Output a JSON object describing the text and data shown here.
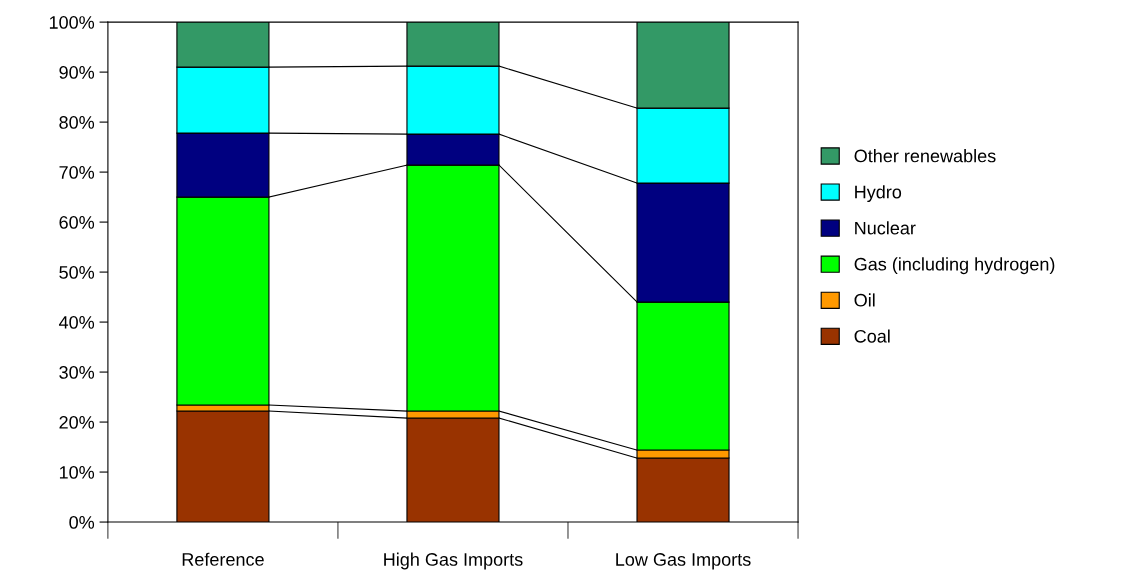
{
  "chart_data": {
    "type": "bar",
    "stacked": true,
    "categories": [
      "Reference",
      "High Gas Imports",
      "Low Gas Imports"
    ],
    "series": [
      {
        "name": "Coal",
        "color": "#993300",
        "values": [
          22.2,
          20.8,
          12.8
        ]
      },
      {
        "name": "Oil",
        "color": "#ff9900",
        "values": [
          1.2,
          1.4,
          1.6
        ]
      },
      {
        "name": "Gas (including hydrogen)",
        "color": "#00ff00",
        "values": [
          41.6,
          49.2,
          29.6
        ]
      },
      {
        "name": "Nuclear",
        "color": "#000080",
        "values": [
          12.8,
          6.2,
          23.8
        ]
      },
      {
        "name": "Hydro",
        "color": "#00ffff",
        "values": [
          13.2,
          13.6,
          15.0
        ]
      },
      {
        "name": "Other renewables",
        "color": "#339966",
        "values": [
          9.0,
          8.8,
          17.2
        ]
      }
    ],
    "ylim": [
      0,
      100
    ],
    "yticks": [
      {
        "value": 0,
        "label": "0%"
      },
      {
        "value": 10,
        "label": "10%"
      },
      {
        "value": 20,
        "label": "20%"
      },
      {
        "value": 30,
        "label": "30%"
      },
      {
        "value": 40,
        "label": "40%"
      },
      {
        "value": 50,
        "label": "50%"
      },
      {
        "value": 60,
        "label": "60%"
      },
      {
        "value": 70,
        "label": "70%"
      },
      {
        "value": 80,
        "label": "80%"
      },
      {
        "value": 90,
        "label": "90%"
      },
      {
        "value": 100,
        "label": "100%"
      }
    ],
    "grid": false,
    "legend": "right"
  }
}
